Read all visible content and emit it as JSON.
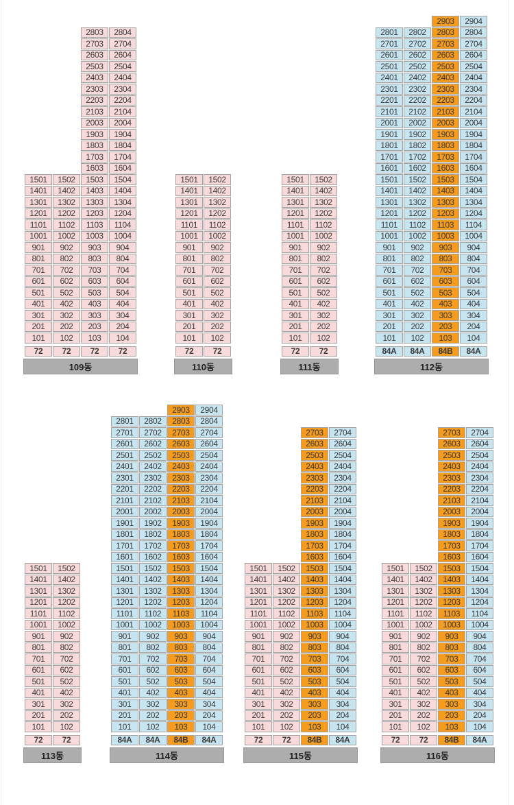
{
  "canvas": {
    "background": "#ffffff",
    "edge_line_color": "#ececec"
  },
  "palette": {
    "cell_border": "#a3a3a3",
    "cell_text": "#3a3a3a",
    "bar_bg": "#adadad",
    "bar_border": "#969696",
    "bar_text": "#1f1f1f"
  },
  "types": {
    "72": {
      "bg": "#f9dada"
    },
    "84A": {
      "bg": "#c7e4f1"
    },
    "84B": {
      "bg": "#f59b1e"
    }
  },
  "buildings": [
    {
      "id": "109",
      "label": "109동",
      "type_row": [
        "72",
        "72",
        "72",
        "72"
      ],
      "columns": [
        {
          "type": "72",
          "units": [
            "1501",
            "1401",
            "1301",
            "1201",
            "1101",
            "1001",
            "901",
            "801",
            "701",
            "601",
            "501",
            "401",
            "301",
            "201",
            "101"
          ]
        },
        {
          "type": "72",
          "units": [
            "1502",
            "1402",
            "1302",
            "1202",
            "1102",
            "1002",
            "902",
            "802",
            "702",
            "602",
            "502",
            "402",
            "302",
            "202",
            "102"
          ]
        },
        {
          "type": "72",
          "units": [
            "2803",
            "2703",
            "2603",
            "2503",
            "2403",
            "2303",
            "2203",
            "2103",
            "2003",
            "1903",
            "1803",
            "1703",
            "1603",
            "1503",
            "1403",
            "1303",
            "1203",
            "1103",
            "1003",
            "903",
            "803",
            "703",
            "603",
            "503",
            "403",
            "303",
            "203",
            "103"
          ]
        },
        {
          "type": "72",
          "units": [
            "2804",
            "2704",
            "2604",
            "2504",
            "2404",
            "2304",
            "2204",
            "2104",
            "2004",
            "1904",
            "1804",
            "1704",
            "1604",
            "1504",
            "1404",
            "1304",
            "1204",
            "1104",
            "1004",
            "904",
            "804",
            "704",
            "604",
            "504",
            "404",
            "304",
            "204",
            "104"
          ]
        }
      ]
    },
    {
      "id": "110",
      "label": "110동",
      "type_row": [
        "72",
        "72"
      ],
      "columns": [
        {
          "type": "72",
          "units": [
            "1501",
            "1401",
            "1301",
            "1201",
            "1101",
            "1001",
            "901",
            "801",
            "701",
            "601",
            "501",
            "401",
            "301",
            "201",
            "101"
          ]
        },
        {
          "type": "72",
          "units": [
            "1502",
            "1402",
            "1302",
            "1202",
            "1102",
            "1002",
            "902",
            "802",
            "702",
            "602",
            "502",
            "402",
            "302",
            "202",
            "102"
          ]
        }
      ]
    },
    {
      "id": "111",
      "label": "111동",
      "type_row": [
        "72",
        "72"
      ],
      "columns": [
        {
          "type": "72",
          "units": [
            "1501",
            "1401",
            "1301",
            "1201",
            "1101",
            "1001",
            "901",
            "801",
            "701",
            "601",
            "501",
            "401",
            "301",
            "201",
            "101"
          ]
        },
        {
          "type": "72",
          "units": [
            "1502",
            "1402",
            "1302",
            "1202",
            "1102",
            "1002",
            "902",
            "802",
            "702",
            "602",
            "502",
            "402",
            "302",
            "202",
            "102"
          ]
        }
      ]
    },
    {
      "id": "112",
      "label": "112동",
      "type_row": [
        "84A",
        "84A",
        "84B",
        "84A"
      ],
      "columns": [
        {
          "type": "84A",
          "units": [
            "2801",
            "2701",
            "2601",
            "2501",
            "2401",
            "2301",
            "2201",
            "2101",
            "2001",
            "1901",
            "1801",
            "1701",
            "1601",
            "1501",
            "1401",
            "1301",
            "1201",
            "1101",
            "1001",
            "901",
            "801",
            "701",
            "601",
            "501",
            "401",
            "301",
            "201",
            "101"
          ]
        },
        {
          "type": "84A",
          "units": [
            "2802",
            "2702",
            "2602",
            "2502",
            "2402",
            "2302",
            "2202",
            "2102",
            "2002",
            "1902",
            "1802",
            "1702",
            "1602",
            "1502",
            "1402",
            "1302",
            "1202",
            "1102",
            "1002",
            "902",
            "802",
            "702",
            "602",
            "502",
            "402",
            "302",
            "202",
            "102"
          ]
        },
        {
          "type": "84B",
          "units": [
            "2903",
            "2803",
            "2703",
            "2603",
            "2503",
            "2403",
            "2303",
            "2203",
            "2103",
            "2003",
            "1903",
            "1803",
            "1703",
            "1603",
            "1503",
            "1403",
            "1303",
            "1203",
            "1103",
            "1003",
            "903",
            "803",
            "703",
            "603",
            "503",
            "403",
            "303",
            "203",
            "103"
          ]
        },
        {
          "type": "84A",
          "units": [
            "2904",
            "2804",
            "2704",
            "2604",
            "2504",
            "2404",
            "2304",
            "2204",
            "2104",
            "2004",
            "1904",
            "1804",
            "1704",
            "1604",
            "1504",
            "1404",
            "1304",
            "1204",
            "1104",
            "1004",
            "904",
            "804",
            "704",
            "604",
            "504",
            "404",
            "304",
            "204",
            "104"
          ]
        }
      ]
    },
    {
      "id": "113",
      "label": "113동",
      "type_row": [
        "72",
        "72"
      ],
      "columns": [
        {
          "type": "72",
          "units": [
            "1501",
            "1401",
            "1301",
            "1201",
            "1101",
            "1001",
            "901",
            "801",
            "701",
            "601",
            "501",
            "401",
            "301",
            "201",
            "101"
          ]
        },
        {
          "type": "72",
          "units": [
            "1502",
            "1402",
            "1302",
            "1202",
            "1102",
            "1002",
            "902",
            "802",
            "702",
            "602",
            "502",
            "402",
            "302",
            "202",
            "102"
          ]
        }
      ]
    },
    {
      "id": "114",
      "label": "114동",
      "type_row": [
        "84A",
        "84A",
        "84B",
        "84A"
      ],
      "columns": [
        {
          "type": "84A",
          "units": [
            "2801",
            "2701",
            "2601",
            "2501",
            "2401",
            "2301",
            "2201",
            "2101",
            "2001",
            "1901",
            "1801",
            "1701",
            "1601",
            "1501",
            "1401",
            "1301",
            "1201",
            "1101",
            "1001",
            "901",
            "801",
            "701",
            "601",
            "501",
            "401",
            "301",
            "201",
            "101"
          ]
        },
        {
          "type": "84A",
          "units": [
            "2802",
            "2702",
            "2602",
            "2502",
            "2402",
            "2302",
            "2202",
            "2102",
            "2002",
            "1902",
            "1802",
            "1702",
            "1602",
            "1502",
            "1402",
            "1302",
            "1202",
            "1102",
            "1002",
            "902",
            "802",
            "702",
            "602",
            "502",
            "402",
            "302",
            "202",
            "102"
          ]
        },
        {
          "type": "84B",
          "units": [
            "2903",
            "2803",
            "2703",
            "2603",
            "2503",
            "2403",
            "2303",
            "2203",
            "2103",
            "2003",
            "1903",
            "1803",
            "1703",
            "1603",
            "1503",
            "1403",
            "1303",
            "1203",
            "1103",
            "1003",
            "903",
            "803",
            "703",
            "603",
            "503",
            "403",
            "303",
            "203",
            "103"
          ]
        },
        {
          "type": "84A",
          "units": [
            "2904",
            "2804",
            "2704",
            "2604",
            "2504",
            "2404",
            "2304",
            "2204",
            "2104",
            "2004",
            "1904",
            "1804",
            "1704",
            "1604",
            "1504",
            "1404",
            "1304",
            "1204",
            "1104",
            "1004",
            "904",
            "804",
            "704",
            "604",
            "504",
            "404",
            "304",
            "204",
            "104"
          ]
        }
      ]
    },
    {
      "id": "115",
      "label": "115동",
      "type_row": [
        "72",
        "72",
        "84B",
        "84A"
      ],
      "columns": [
        {
          "type": "72",
          "units": [
            "1501",
            "1401",
            "1301",
            "1201",
            "1101",
            "1001",
            "901",
            "801",
            "701",
            "601",
            "501",
            "401",
            "301",
            "201",
            "101"
          ]
        },
        {
          "type": "72",
          "units": [
            "1502",
            "1402",
            "1302",
            "1202",
            "1102",
            "1002",
            "902",
            "802",
            "702",
            "602",
            "502",
            "402",
            "302",
            "202",
            "102"
          ]
        },
        {
          "type": "84B",
          "units": [
            "2703",
            "2603",
            "2503",
            "2403",
            "2303",
            "2203",
            "2103",
            "2003",
            "1903",
            "1803",
            "1703",
            "1603",
            "1503",
            "1403",
            "1303",
            "1203",
            "1103",
            "1003",
            "903",
            "803",
            "703",
            "603",
            "503",
            "403",
            "303",
            "203",
            "103"
          ]
        },
        {
          "type": "84A",
          "units": [
            "2704",
            "2604",
            "2504",
            "2404",
            "2304",
            "2204",
            "2104",
            "2004",
            "1904",
            "1804",
            "1704",
            "1604",
            "1504",
            "1404",
            "1304",
            "1204",
            "1104",
            "1004",
            "904",
            "804",
            "704",
            "604",
            "504",
            "404",
            "304",
            "204",
            "104"
          ]
        }
      ]
    },
    {
      "id": "116",
      "label": "116동",
      "type_row": [
        "72",
        "72",
        "84B",
        "84A"
      ],
      "columns": [
        {
          "type": "72",
          "units": [
            "1501",
            "1401",
            "1301",
            "1201",
            "1101",
            "1001",
            "901",
            "801",
            "701",
            "601",
            "501",
            "401",
            "301",
            "201",
            "101"
          ]
        },
        {
          "type": "72",
          "units": [
            "1502",
            "1402",
            "1302",
            "1202",
            "1102",
            "1002",
            "902",
            "802",
            "702",
            "602",
            "502",
            "402",
            "302",
            "202",
            "102"
          ]
        },
        {
          "type": "84B",
          "units": [
            "2703",
            "2603",
            "2503",
            "2403",
            "2303",
            "2203",
            "2103",
            "2003",
            "1903",
            "1803",
            "1703",
            "1603",
            "1503",
            "1403",
            "1303",
            "1203",
            "1103",
            "1003",
            "903",
            "803",
            "703",
            "603",
            "503",
            "403",
            "303",
            "203",
            "103"
          ]
        },
        {
          "type": "84A",
          "units": [
            "2704",
            "2604",
            "2504",
            "2404",
            "2304",
            "2204",
            "2104",
            "2004",
            "1904",
            "1804",
            "1704",
            "1604",
            "1504",
            "1404",
            "1304",
            "1204",
            "1104",
            "1004",
            "904",
            "804",
            "704",
            "604",
            "504",
            "404",
            "304",
            "204",
            "104"
          ]
        }
      ]
    }
  ]
}
